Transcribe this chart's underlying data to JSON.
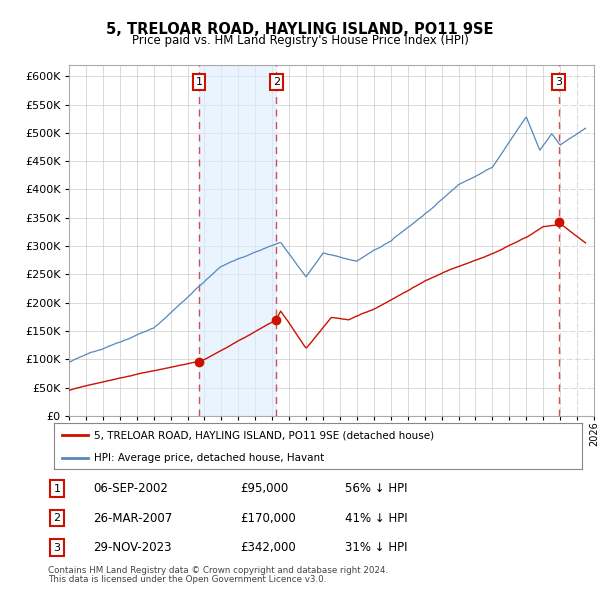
{
  "title": "5, TRELOAR ROAD, HAYLING ISLAND, PO11 9SE",
  "subtitle": "Price paid vs. HM Land Registry's House Price Index (HPI)",
  "ytick_values": [
    0,
    50000,
    100000,
    150000,
    200000,
    250000,
    300000,
    350000,
    400000,
    450000,
    500000,
    550000,
    600000
  ],
  "xlim_start": 1995.0,
  "xlim_end": 2026.0,
  "ylim_min": 0,
  "ylim_max": 620000,
  "sale_dates": [
    2002.686,
    2007.236,
    2023.912
  ],
  "sale_prices": [
    95000,
    170000,
    342000
  ],
  "sale_labels": [
    "1",
    "2",
    "3"
  ],
  "legend_red": "5, TRELOAR ROAD, HAYLING ISLAND, PO11 9SE (detached house)",
  "legend_blue": "HPI: Average price, detached house, Havant",
  "table_rows": [
    [
      "1",
      "06-SEP-2002",
      "£95,000",
      "56% ↓ HPI"
    ],
    [
      "2",
      "26-MAR-2007",
      "£170,000",
      "41% ↓ HPI"
    ],
    [
      "3",
      "29-NOV-2023",
      "£342,000",
      "31% ↓ HPI"
    ]
  ],
  "footnote1": "Contains HM Land Registry data © Crown copyright and database right 2024.",
  "footnote2": "This data is licensed under the Open Government Licence v3.0.",
  "hpi_color": "#5588bb",
  "sale_color": "#cc1100",
  "dashed_color": "#cc3333",
  "shade_color": "#ddeeff",
  "fig_width": 6.0,
  "fig_height": 5.9
}
